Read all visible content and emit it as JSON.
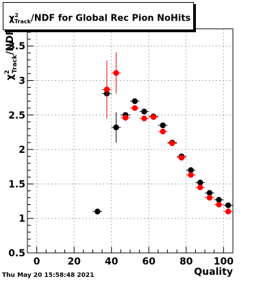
{
  "title": {
    "chi": "χ",
    "sup": "2",
    "sub": "Track",
    "rest": "/NDF for Global Rec Pion NoHits"
  },
  "timestamp": "Thu May 20 15:58:48 2021",
  "chart_data": {
    "type": "scatter",
    "title": "χ²Track/NDF for Global Rec Pion NoHits",
    "xlabel": "Quality",
    "ylabel": "χ²Track/NDF",
    "ylabel_parts": {
      "chi": "χ",
      "sup": "2",
      "sub": "Track",
      "rest": "/NDF"
    },
    "xlim": [
      -5,
      105
    ],
    "ylim": [
      0.5,
      3.75
    ],
    "grid": true,
    "x_ticks": [
      0,
      20,
      40,
      60,
      80,
      100
    ],
    "y_ticks": [
      0.5,
      1,
      1.5,
      2,
      2.5,
      3,
      3.5
    ],
    "y_tick_labels": [
      "0.5",
      "1",
      "1.5",
      "2",
      "2.5",
      "3",
      "3.5"
    ],
    "series": [
      {
        "color": "#000000",
        "points": [
          {
            "x": 32.5,
            "y": 1.1,
            "err": 0.0
          },
          {
            "x": 37.5,
            "y": 2.81,
            "err": 0.0
          },
          {
            "x": 42.5,
            "y": 2.32,
            "err": 0.22
          },
          {
            "x": 47.5,
            "y": 2.5,
            "err": 0.0
          },
          {
            "x": 52.5,
            "y": 2.7,
            "err": 0.0
          },
          {
            "x": 57.5,
            "y": 2.55,
            "err": 0.0
          },
          {
            "x": 62.5,
            "y": 2.48,
            "err": 0.0
          },
          {
            "x": 67.5,
            "y": 2.35,
            "err": 0.0
          },
          {
            "x": 72.5,
            "y": 2.1,
            "err": 0.0
          },
          {
            "x": 77.5,
            "y": 1.9,
            "err": 0.0
          },
          {
            "x": 82.5,
            "y": 1.7,
            "err": 0.0
          },
          {
            "x": 87.5,
            "y": 1.52,
            "err": 0.0
          },
          {
            "x": 92.5,
            "y": 1.37,
            "err": 0.0
          },
          {
            "x": 97.5,
            "y": 1.27,
            "err": 0.0
          },
          {
            "x": 102.5,
            "y": 1.19,
            "err": 0.0
          }
        ]
      },
      {
        "color": "#ff0000",
        "points": [
          {
            "x": 37.5,
            "y": 2.87,
            "err": 0.42
          },
          {
            "x": 42.5,
            "y": 3.11,
            "err": 0.3
          },
          {
            "x": 47.5,
            "y": 2.46,
            "err": 0.0
          },
          {
            "x": 52.5,
            "y": 2.6,
            "err": 0.0
          },
          {
            "x": 57.5,
            "y": 2.45,
            "err": 0.0
          },
          {
            "x": 62.5,
            "y": 2.47,
            "err": 0.0
          },
          {
            "x": 67.5,
            "y": 2.26,
            "err": 0.0
          },
          {
            "x": 72.5,
            "y": 2.09,
            "err": 0.0
          },
          {
            "x": 77.5,
            "y": 1.88,
            "err": 0.0
          },
          {
            "x": 82.5,
            "y": 1.63,
            "err": 0.0
          },
          {
            "x": 87.5,
            "y": 1.45,
            "err": 0.0
          },
          {
            "x": 92.5,
            "y": 1.3,
            "err": 0.0
          },
          {
            "x": 97.5,
            "y": 1.2,
            "err": 0.0
          },
          {
            "x": 102.5,
            "y": 1.1,
            "err": 0.0
          }
        ]
      }
    ]
  }
}
